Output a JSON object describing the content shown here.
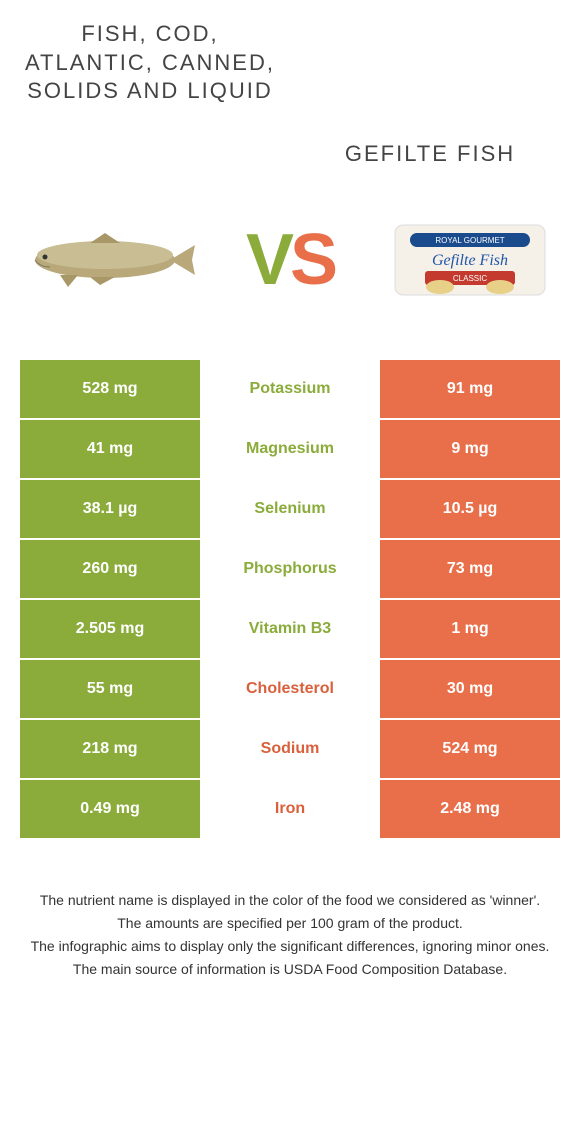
{
  "colors": {
    "left": "#8bac3b",
    "right": "#e86f4a",
    "left_text": "#8bac3b",
    "right_text": "#d9603c",
    "title": "#444444",
    "footer": "#333333"
  },
  "header": {
    "left_title": "Fish, cod, Atlantic, canned, solids and liquid",
    "right_title": "Gefilte fish"
  },
  "vs": {
    "v": "V",
    "s": "S"
  },
  "rows": [
    {
      "left": "528 mg",
      "nutrient": "Potassium",
      "right": "91 mg",
      "winner": "left"
    },
    {
      "left": "41 mg",
      "nutrient": "Magnesium",
      "right": "9 mg",
      "winner": "left"
    },
    {
      "left": "38.1 µg",
      "nutrient": "Selenium",
      "right": "10.5 µg",
      "winner": "left"
    },
    {
      "left": "260 mg",
      "nutrient": "Phosphorus",
      "right": "73 mg",
      "winner": "left"
    },
    {
      "left": "2.505 mg",
      "nutrient": "Vitamin B3",
      "right": "1 mg",
      "winner": "left"
    },
    {
      "left": "55 mg",
      "nutrient": "Cholesterol",
      "right": "30 mg",
      "winner": "right"
    },
    {
      "left": "218 mg",
      "nutrient": "Sodium",
      "right": "524 mg",
      "winner": "right"
    },
    {
      "left": "0.49 mg",
      "nutrient": "Iron",
      "right": "2.48 mg",
      "winner": "right"
    }
  ],
  "footer": {
    "line1": "The nutrient name is displayed in the color of the food we considered as 'winner'.",
    "line2": "The amounts are specified per 100 gram of the product.",
    "line3": "The infographic aims to display only the significant differences, ignoring minor ones.",
    "line4": "The main source of information is USDA Food Composition Database."
  }
}
